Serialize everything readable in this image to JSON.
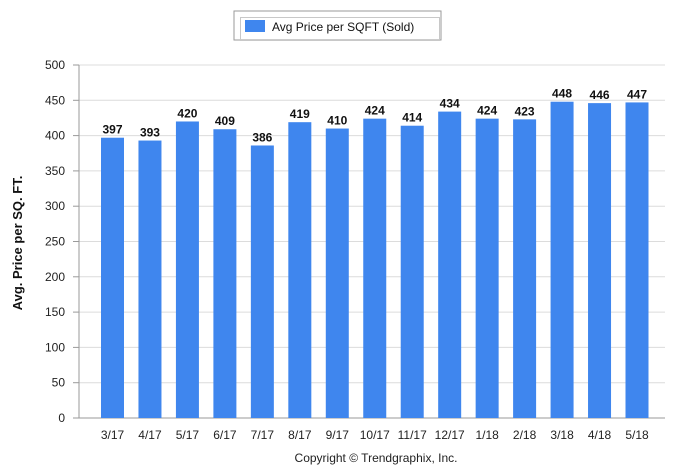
{
  "chart_data": {
    "type": "bar",
    "title": "",
    "xlabel": "",
    "ylabel": "Avg. Price per SQ. FT.",
    "ylim": [
      0,
      500
    ],
    "yticks": [
      0,
      50,
      100,
      150,
      200,
      250,
      300,
      350,
      400,
      450,
      500
    ],
    "grid": true,
    "legend_position": "top-center",
    "categories": [
      "3/17",
      "4/17",
      "5/17",
      "6/17",
      "7/17",
      "8/17",
      "9/17",
      "10/17",
      "11/17",
      "12/17",
      "1/18",
      "2/18",
      "3/18",
      "4/18",
      "5/18"
    ],
    "series": [
      {
        "name": "Avg Price per SQFT (Sold)",
        "color": "#3f86ee",
        "values": [
          397,
          393,
          420,
          409,
          386,
          419,
          410,
          424,
          414,
          434,
          424,
          423,
          448,
          446,
          447
        ]
      }
    ]
  },
  "footer": {
    "copyright": "Copyright © Trendgraphix, Inc."
  }
}
